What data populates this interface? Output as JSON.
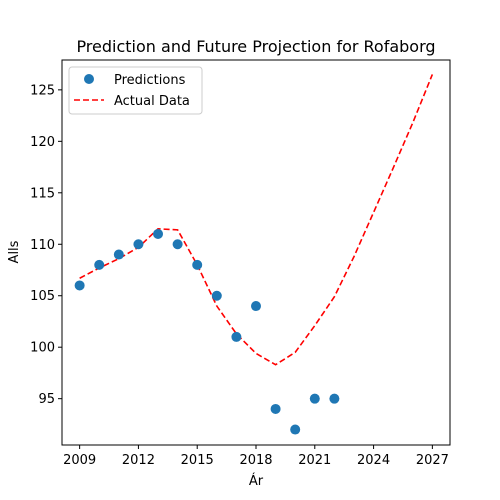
{
  "chart_data": {
    "type": "scatter",
    "title": "Prediction and Future Projection for Rofaborg",
    "xlabel": "Ár",
    "ylabel": "Alls",
    "xlim": [
      2008.1,
      2027.9
    ],
    "ylim": [
      90.5,
      127.9
    ],
    "xticks": [
      2009,
      2012,
      2015,
      2018,
      2021,
      2024,
      2027
    ],
    "yticks": [
      95,
      100,
      105,
      110,
      115,
      120,
      125
    ],
    "grid": false,
    "legend_position": "top-left",
    "series": [
      {
        "name": "Predictions",
        "kind": "scatter",
        "color": "#1f77b4",
        "x": [
          2009,
          2010,
          2011,
          2012,
          2013,
          2014,
          2015,
          2016,
          2017,
          2018,
          2019,
          2020,
          2021,
          2022
        ],
        "y": [
          106,
          108,
          109,
          110,
          111,
          110,
          108,
          105,
          101,
          104,
          94,
          92,
          95,
          95
        ]
      },
      {
        "name": "Actual Data",
        "kind": "line",
        "style": "dashed",
        "color": "#ff0000",
        "x": [
          2009,
          2010,
          2011,
          2012,
          2013,
          2014,
          2015,
          2016,
          2017,
          2018,
          2019,
          2020,
          2021,
          2022,
          2023,
          2024,
          2025,
          2026,
          2027
        ],
        "y": [
          106.7,
          107.7,
          108.6,
          109.7,
          111.5,
          111.4,
          108.0,
          104.0,
          101.3,
          99.4,
          98.3,
          99.5,
          102.1,
          104.9,
          108.8,
          113.1,
          117.4,
          121.8,
          126.5
        ]
      }
    ]
  }
}
